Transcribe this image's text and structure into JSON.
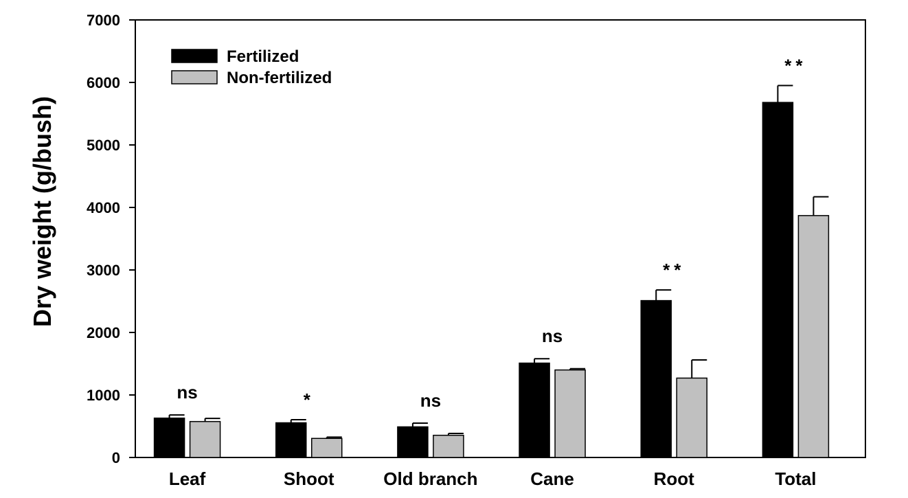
{
  "chart_data": {
    "type": "bar",
    "title": "",
    "xlabel": "",
    "ylabel": "Dry weight (g/bush)",
    "ylim": [
      0,
      7000
    ],
    "yticks": [
      0,
      1000,
      2000,
      3000,
      4000,
      5000,
      6000,
      7000
    ],
    "categories": [
      "Leaf",
      "Shoot",
      "Old branch",
      "Cane",
      "Root",
      "Total"
    ],
    "series": [
      {
        "name": "Fertilized",
        "color": "#000000",
        "values": [
          630,
          555,
          490,
          1510,
          2510,
          5680
        ],
        "errors": [
          50,
          50,
          60,
          70,
          170,
          270
        ]
      },
      {
        "name": "Non-fertilized",
        "color": "#c0c0c0",
        "values": [
          575,
          305,
          355,
          1400,
          1270,
          3870
        ],
        "errors": [
          50,
          20,
          30,
          20,
          290,
          300
        ]
      }
    ],
    "significance": [
      "ns",
      "*",
      "ns",
      "ns",
      "**",
      "**"
    ],
    "legend": {
      "location": "top-left"
    },
    "grid": false
  }
}
